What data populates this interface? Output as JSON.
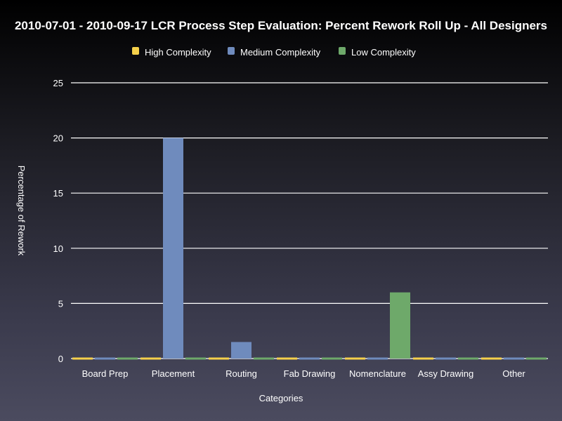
{
  "chart_data": {
    "type": "bar",
    "title": "2010-07-01 - 2010-09-17 LCR Process Step Evaluation: Percent Rework Roll Up - All Designers",
    "xlabel": "Categories",
    "ylabel": "Percentage of Rework",
    "ylim": [
      0,
      25
    ],
    "yticks": [
      0,
      5,
      10,
      15,
      20,
      25
    ],
    "grid": true,
    "legend_position": "top-center",
    "categories": [
      "Board Prep",
      "Placement",
      "Routing",
      "Fab Drawing",
      "Nomenclature",
      "Assy Drawing",
      "Other"
    ],
    "series": [
      {
        "name": "High Complexity",
        "color": "#f5d04a",
        "values": [
          0,
          0,
          0,
          0,
          0,
          0,
          0
        ]
      },
      {
        "name": "Medium Complexity",
        "color": "#6f8bbd",
        "values": [
          0,
          20,
          1.5,
          0,
          0,
          0,
          0
        ]
      },
      {
        "name": "Low Complexity",
        "color": "#6ea96a",
        "values": [
          0,
          0,
          0,
          0,
          6,
          0,
          0
        ]
      }
    ]
  }
}
